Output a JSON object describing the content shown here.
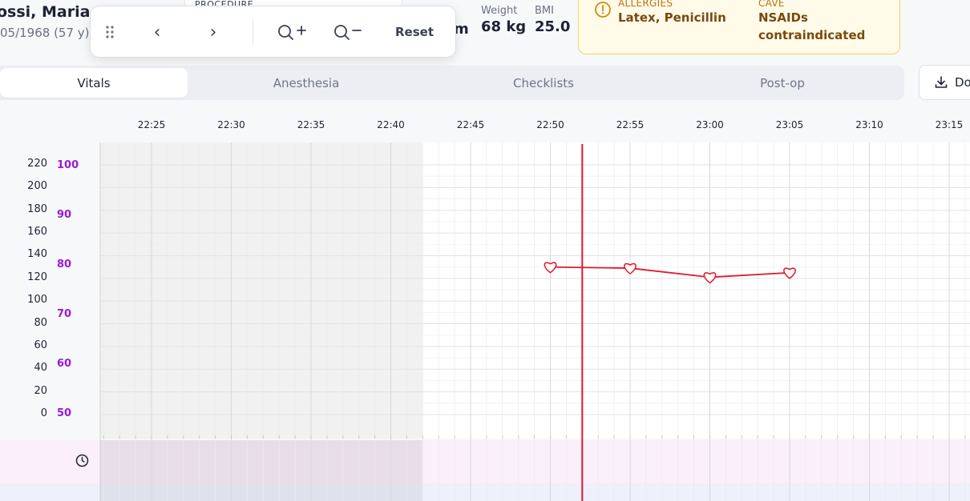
{
  "patient": {
    "name": "ossi, Maria",
    "dob": "05/1968 (57 y)"
  },
  "procedure": {
    "label": "PROCEDURE"
  },
  "height_fragment": "m",
  "metrics": [
    {
      "label": "Weight",
      "value": "68 kg"
    },
    {
      "label": "BMI",
      "value": "25.0"
    }
  ],
  "allergies": {
    "label": "ALLERGIES",
    "value": "Latex, Penicillin"
  },
  "cave": {
    "label": "CAVE",
    "value_line1": "NSAIDs",
    "value_line2": "contraindicated"
  },
  "toolbar": {
    "drag_icon": "drag-handle-icon",
    "prev": "‹",
    "next": "›",
    "zoom_in_icon": "zoom-in-icon",
    "zoom_out_icon": "zoom-out-icon",
    "reset_label": "Reset"
  },
  "tabs": [
    {
      "label": "Vitals",
      "active": true
    },
    {
      "label": "Anesthesia",
      "active": false
    },
    {
      "label": "Checklists",
      "active": false
    },
    {
      "label": "Post-op",
      "active": false
    }
  ],
  "download": {
    "label": "Do",
    "icon": "download-icon"
  },
  "chart_data": {
    "type": "line",
    "x_ticks": [
      "22:25",
      "22:30",
      "22:35",
      "22:40",
      "22:45",
      "22:50",
      "22:55",
      "23:00",
      "23:05",
      "23:10",
      "23:15"
    ],
    "y_left_ticks": [
      "220",
      "200",
      "180",
      "160",
      "140",
      "120",
      "100",
      "80",
      "60",
      "40",
      "20",
      "0"
    ],
    "y_right_ticks": [
      "100",
      "90",
      "80",
      "70",
      "60",
      "50"
    ],
    "ylim_left": [
      0,
      220
    ],
    "series": [
      {
        "marker": "heart",
        "color": "#e0192c",
        "x": [
          "22:50",
          "22:55",
          "23:00",
          "23:05"
        ],
        "values": [
          130,
          129,
          121,
          125
        ]
      }
    ],
    "current_time": "22:52",
    "shaded_until": "22:42",
    "grid": true
  },
  "colors": {
    "now_line": "#e0192c",
    "right_axis": "#9a1ad8",
    "shaded": "#f1f1f1",
    "band_pink": "#fbeffb",
    "band_blue": "#eef0fb"
  }
}
